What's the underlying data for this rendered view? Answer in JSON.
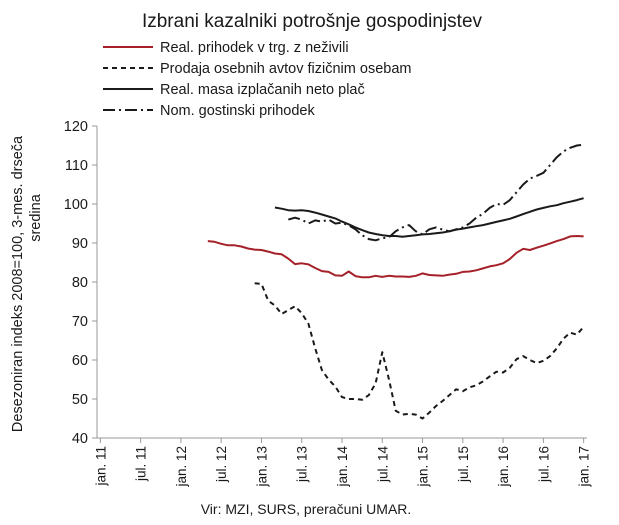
{
  "chart_data": {
    "type": "line",
    "title": "Izbrani kazalniki potrošnje gospodinjstev",
    "ylabel_lines": [
      "Desezoniran indeks 2008=100, 3-mes. drseča",
      "sredina"
    ],
    "source": "Vir: MZI, SURS, preračuni UMAR.",
    "ylim": [
      40,
      120
    ],
    "yticks": [
      40,
      50,
      60,
      70,
      80,
      90,
      100,
      110,
      120
    ],
    "xticks": [
      {
        "label": "jan. 11",
        "month": 0
      },
      {
        "label": "jul. 11",
        "month": 6
      },
      {
        "label": "jan. 12",
        "month": 12
      },
      {
        "label": "jul. 12",
        "month": 18
      },
      {
        "label": "jan. 13",
        "month": 24
      },
      {
        "label": "jul. 13",
        "month": 30
      },
      {
        "label": "jan. 14",
        "month": 36
      },
      {
        "label": "jul. 14",
        "month": 42
      },
      {
        "label": "jan. 15",
        "month": 48
      },
      {
        "label": "jul. 15",
        "month": 54
      },
      {
        "label": "jan. 16",
        "month": 60
      },
      {
        "label": "jul. 16",
        "month": 66
      },
      {
        "label": "jan. 17",
        "month": 72
      }
    ],
    "grid": false,
    "legend_position": "top",
    "series": [
      {
        "name": "Real. prihodek v trg. z neživili",
        "color": "#a52028",
        "style": "solid",
        "values": [
          90.5,
          90.3,
          89.8,
          89.4,
          89.4,
          89.1,
          88.6,
          88.3,
          88.2,
          87.8,
          87.3,
          87.1,
          86.0,
          84.6,
          84.8,
          84.5,
          83.6,
          82.8,
          82.6,
          81.7,
          81.6,
          82.7,
          81.5,
          81.2,
          81.2,
          81.6,
          81.3,
          81.6,
          81.4,
          81.4,
          81.3,
          81.6,
          82.2,
          81.8,
          81.7,
          81.6,
          81.9,
          82.1,
          82.6,
          82.7,
          83.0,
          83.5,
          84.0,
          84.3,
          84.8,
          85.9,
          87.5,
          88.5,
          88.2,
          88.8,
          89.3,
          89.9,
          90.5,
          91.0,
          91.7,
          91.8,
          91.7
        ]
      },
      {
        "name": "Prodaja osebnih avtov fizičnim osebam",
        "color": "#1a1a1a",
        "style": "dashed",
        "values": [
          79.7,
          79.5,
          75.2,
          74.0,
          71.8,
          72.8,
          73.8,
          72.0,
          69.3,
          63.0,
          57.4,
          55.0,
          53.2,
          50.5,
          50.0,
          50.0,
          49.8,
          51.0,
          54.0,
          62.0,
          55.0,
          47.0,
          46.0,
          46.2,
          46.0,
          45.0,
          46.5,
          48.2,
          49.5,
          51.0,
          52.5,
          52.0,
          53.0,
          53.5,
          54.5,
          55.8,
          57.0,
          56.8,
          58.0,
          60.2,
          61.0,
          60.0,
          59.2,
          59.8,
          61.0,
          63.0,
          65.5,
          67.0,
          66.5,
          68.5
        ]
      },
      {
        "name": "Real. masa izplačanih neto plač",
        "color": "#1a1a1a",
        "style": "solid",
        "values": [
          99.1,
          98.8,
          98.4,
          98.3,
          98.4,
          98.2,
          97.8,
          97.3,
          96.8,
          96.3,
          95.5,
          94.8,
          94.0,
          93.3,
          92.7,
          92.3,
          92.0,
          91.8,
          91.8,
          91.6,
          91.8,
          92.0,
          92.2,
          92.3,
          92.5,
          92.7,
          93.0,
          93.4,
          93.7,
          94.0,
          94.3,
          94.6,
          95.0,
          95.4,
          95.8,
          96.2,
          96.8,
          97.4,
          98.0,
          98.6,
          99.0,
          99.4,
          99.7,
          100.2,
          100.6,
          101.0,
          101.5
        ]
      },
      {
        "name": "Nom. gostinski prihodek",
        "color": "#1a1a1a",
        "style": "dashdot",
        "values": [
          96.0,
          96.5,
          96.0,
          95.0,
          95.8,
          95.5,
          96.0,
          95.0,
          95.2,
          94.5,
          93.5,
          92.0,
          91.0,
          90.7,
          91.2,
          91.5,
          93.0,
          94.0,
          94.6,
          93.0,
          92.2,
          93.5,
          94.0,
          93.4,
          93.0,
          93.5,
          94.0,
          95.0,
          96.5,
          97.5,
          99.0,
          100.0,
          99.8,
          101.0,
          103.0,
          105.0,
          106.5,
          107.2,
          108.0,
          110.0,
          112.0,
          113.5,
          114.4,
          115.0,
          115.2
        ]
      }
    ]
  }
}
